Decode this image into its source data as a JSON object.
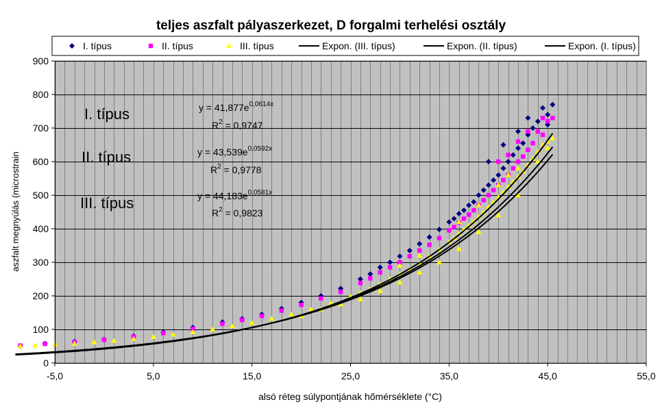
{
  "colors": {
    "plot_bg": "#c0c0c0",
    "grid": "#808080",
    "series_I": "#000080",
    "series_II": "#ff00ff",
    "series_III": "#ffff00",
    "trend": "#000000"
  },
  "chart_data": {
    "type": "scatter",
    "title": "teljes aszfalt pályaszerkezet, D forgalmi terhelési osztály",
    "xlabel": "alsó réteg súlypontjának hőmérséklete (°C)",
    "ylabel": "aszfalt megnyúlás (microstrain",
    "xlim": [
      -5,
      55
    ],
    "ylim": [
      0,
      900
    ],
    "x_ticks": [
      -5,
      5,
      15,
      25,
      35,
      45,
      55
    ],
    "x_tick_labels": [
      "-5,0",
      "5,0",
      "15,0",
      "25,0",
      "35,0",
      "45,0",
      "55,0"
    ],
    "y_ticks": [
      0,
      100,
      200,
      300,
      400,
      500,
      600,
      700,
      800,
      900
    ],
    "y_tick_labels": [
      "0",
      "100",
      "200",
      "300",
      "400",
      "500",
      "600",
      "700",
      "800",
      "900"
    ],
    "x_grid_step": 1,
    "grid": true,
    "legend_position": "top",
    "series": [
      {
        "name": "I. típus",
        "marker": "diamond",
        "color": "#000080",
        "points": [
          [
            -8.5,
            50
          ],
          [
            -6,
            58
          ],
          [
            -3,
            64
          ],
          [
            0,
            70
          ],
          [
            3,
            80
          ],
          [
            6,
            92
          ],
          [
            9,
            106
          ],
          [
            12,
            122
          ],
          [
            14,
            132
          ],
          [
            16,
            145
          ],
          [
            18,
            162
          ],
          [
            20,
            180
          ],
          [
            22,
            200
          ],
          [
            24,
            222
          ],
          [
            26,
            250
          ],
          [
            27,
            265
          ],
          [
            28,
            285
          ],
          [
            29,
            300
          ],
          [
            30,
            318
          ],
          [
            31,
            335
          ],
          [
            32,
            355
          ],
          [
            33,
            375
          ],
          [
            34,
            398
          ],
          [
            35,
            420
          ],
          [
            35.5,
            430
          ],
          [
            36,
            445
          ],
          [
            36.5,
            455
          ],
          [
            37,
            470
          ],
          [
            37.5,
            480
          ],
          [
            38,
            500
          ],
          [
            38.5,
            515
          ],
          [
            39,
            530
          ],
          [
            39.5,
            545
          ],
          [
            40,
            560
          ],
          [
            40.5,
            580
          ],
          [
            41,
            600
          ],
          [
            41.5,
            620
          ],
          [
            42,
            640
          ],
          [
            42.5,
            655
          ],
          [
            43,
            680
          ],
          [
            43.5,
            700
          ],
          [
            44,
            720
          ],
          [
            44.5,
            760
          ],
          [
            45,
            740
          ],
          [
            45.5,
            770
          ],
          [
            45,
            710
          ],
          [
            40.5,
            650
          ],
          [
            42,
            690
          ],
          [
            43,
            730
          ],
          [
            39,
            600
          ]
        ]
      },
      {
        "name": "II. típus",
        "marker": "square",
        "color": "#ff00ff",
        "points": [
          [
            -8.5,
            52
          ],
          [
            -6,
            57
          ],
          [
            -3,
            63
          ],
          [
            0,
            69
          ],
          [
            3,
            78
          ],
          [
            6,
            89
          ],
          [
            9,
            102
          ],
          [
            12,
            117
          ],
          [
            14,
            128
          ],
          [
            16,
            140
          ],
          [
            18,
            156
          ],
          [
            20,
            173
          ],
          [
            22,
            192
          ],
          [
            24,
            212
          ],
          [
            26,
            238
          ],
          [
            27,
            252
          ],
          [
            28,
            270
          ],
          [
            29,
            285
          ],
          [
            30,
            300
          ],
          [
            31,
            318
          ],
          [
            32,
            335
          ],
          [
            33,
            352
          ],
          [
            34,
            372
          ],
          [
            35,
            395
          ],
          [
            35.5,
            405
          ],
          [
            36,
            418
          ],
          [
            36.5,
            430
          ],
          [
            37,
            442
          ],
          [
            37.5,
            455
          ],
          [
            38,
            470
          ],
          [
            38.5,
            485
          ],
          [
            39,
            500
          ],
          [
            39.5,
            515
          ],
          [
            40,
            530
          ],
          [
            40.5,
            545
          ],
          [
            41,
            560
          ],
          [
            41.5,
            580
          ],
          [
            42,
            600
          ],
          [
            42.5,
            615
          ],
          [
            43,
            635
          ],
          [
            43.5,
            655
          ],
          [
            44,
            690
          ],
          [
            44.5,
            730
          ],
          [
            45,
            720
          ],
          [
            45.5,
            730
          ],
          [
            40,
            600
          ],
          [
            42,
            660
          ],
          [
            43,
            690
          ],
          [
            44.5,
            680
          ],
          [
            41,
            620
          ]
        ]
      },
      {
        "name": "III. típus",
        "marker": "triangle",
        "color": "#ffff00",
        "points": [
          [
            -8.5,
            50
          ],
          [
            -7,
            52
          ],
          [
            -5,
            55
          ],
          [
            -3,
            58
          ],
          [
            -1,
            62
          ],
          [
            1,
            66
          ],
          [
            3,
            72
          ],
          [
            5,
            78
          ],
          [
            7,
            85
          ],
          [
            9,
            92
          ],
          [
            11,
            100
          ],
          [
            13,
            110
          ],
          [
            15,
            120
          ],
          [
            17,
            132
          ],
          [
            19,
            145
          ],
          [
            21,
            160
          ],
          [
            23,
            178
          ],
          [
            25,
            198
          ],
          [
            26,
            210
          ],
          [
            27,
            220
          ],
          [
            28,
            235
          ],
          [
            29,
            250
          ],
          [
            30,
            265
          ],
          [
            31,
            280
          ],
          [
            32,
            298
          ],
          [
            33,
            318
          ],
          [
            34,
            338
          ],
          [
            35,
            360
          ],
          [
            35.5,
            372
          ],
          [
            36,
            385
          ],
          [
            36.5,
            398
          ],
          [
            37,
            410
          ],
          [
            37.5,
            422
          ],
          [
            38,
            435
          ],
          [
            38.5,
            450
          ],
          [
            39,
            465
          ],
          [
            39.5,
            480
          ],
          [
            40,
            495
          ],
          [
            40.5,
            510
          ],
          [
            41,
            525
          ],
          [
            41.5,
            540
          ],
          [
            42,
            555
          ],
          [
            42.5,
            570
          ],
          [
            43,
            590
          ],
          [
            43.5,
            610
          ],
          [
            44,
            630
          ],
          [
            44.5,
            650
          ],
          [
            45,
            660
          ],
          [
            45.5,
            670
          ],
          [
            20,
            140
          ],
          [
            22,
            160
          ],
          [
            24,
            175
          ],
          [
            26,
            190
          ],
          [
            28,
            215
          ],
          [
            30,
            240
          ],
          [
            32,
            270
          ],
          [
            34,
            300
          ],
          [
            36,
            340
          ],
          [
            38,
            390
          ],
          [
            40,
            440
          ],
          [
            42,
            500
          ],
          [
            36,
            420
          ],
          [
            38,
            470
          ],
          [
            40,
            530
          ],
          [
            42,
            580
          ],
          [
            44,
            600
          ],
          [
            45,
            640
          ],
          [
            32,
            320
          ],
          [
            30,
            290
          ],
          [
            41,
            560
          ]
        ]
      }
    ],
    "trendlines": [
      {
        "name": "Expon. (III. típus)",
        "type": "exponential",
        "a": 44.183,
        "b": 0.0581,
        "r2": 0.9823,
        "x_range": [
          -9,
          45.5
        ]
      },
      {
        "name": "Expon. (II. típus)",
        "type": "exponential",
        "a": 43.539,
        "b": 0.0592,
        "r2": 0.9778,
        "x_range": [
          -9,
          45.5
        ]
      },
      {
        "name": "Expon. (I. típus)",
        "type": "exponential",
        "a": 41.877,
        "b": 0.0614,
        "r2": 0.9747,
        "x_range": [
          -9,
          45.5
        ]
      }
    ],
    "legend_entries": [
      "I. típus",
      "II. típus",
      "III. típus",
      "Expon. (III. típus)",
      "Expon. (II. típus)",
      "Expon. (I. típus)"
    ],
    "annotations": {
      "labels": [
        "I. típus",
        "II. típus",
        "III. típus"
      ],
      "equations": [
        {
          "lead": "y = 41,877e",
          "exp": "0,0614x",
          "r2": "= 0,9747"
        },
        {
          "lead": "y = 43,539e",
          "exp": "0,0592x",
          "r2": "= 0,9778"
        },
        {
          "lead": "y = 44,183e",
          "exp": "0,0581x",
          "r2": "= 0,9823"
        }
      ],
      "r2_prefix": "R",
      "r2_sup": "2"
    }
  }
}
